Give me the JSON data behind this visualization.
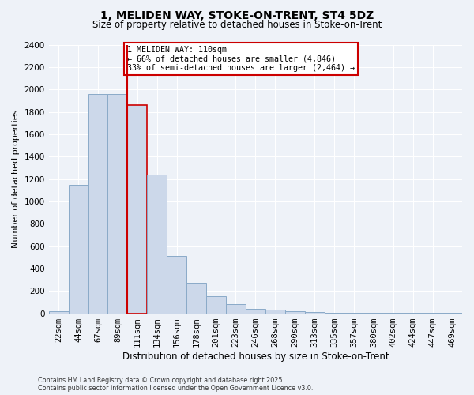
{
  "title": "1, MELIDEN WAY, STOKE-ON-TRENT, ST4 5DZ",
  "subtitle": "Size of property relative to detached houses in Stoke-on-Trent",
  "xlabel": "Distribution of detached houses by size in Stoke-on-Trent",
  "ylabel": "Number of detached properties",
  "bar_labels": [
    "22sqm",
    "44sqm",
    "67sqm",
    "89sqm",
    "111sqm",
    "134sqm",
    "156sqm",
    "178sqm",
    "201sqm",
    "223sqm",
    "246sqm",
    "268sqm",
    "290sqm",
    "313sqm",
    "335sqm",
    "357sqm",
    "380sqm",
    "402sqm",
    "424sqm",
    "447sqm",
    "469sqm"
  ],
  "bar_heights": [
    20,
    1150,
    1960,
    1960,
    1860,
    1240,
    510,
    270,
    155,
    80,
    40,
    30,
    20,
    10,
    6,
    4,
    3,
    3,
    2,
    2,
    2
  ],
  "bar_color": "#ccd8ea",
  "bar_edge_color": "#8aaac8",
  "highlight_bar_index": 4,
  "vline_index": 4,
  "vline_color": "#cc0000",
  "annotation_title": "1 MELIDEN WAY: 110sqm",
  "annotation_line1": "← 66% of detached houses are smaller (4,846)",
  "annotation_line2": "33% of semi-detached houses are larger (2,464) →",
  "annotation_box_color": "#cc0000",
  "ylim": [
    0,
    2400
  ],
  "yticks": [
    0,
    200,
    400,
    600,
    800,
    1000,
    1200,
    1400,
    1600,
    1800,
    2000,
    2200,
    2400
  ],
  "footer_line1": "Contains HM Land Registry data © Crown copyright and database right 2025.",
  "footer_line2": "Contains public sector information licensed under the Open Government Licence v3.0.",
  "bg_color": "#eef2f8",
  "plot_bg_color": "#eef2f8",
  "grid_color": "#ffffff",
  "title_fontsize": 10,
  "subtitle_fontsize": 8.5,
  "ylabel_fontsize": 8,
  "xlabel_fontsize": 8.5,
  "tick_fontsize": 7.5,
  "annot_fontsize": 7.2,
  "footer_fontsize": 5.8
}
